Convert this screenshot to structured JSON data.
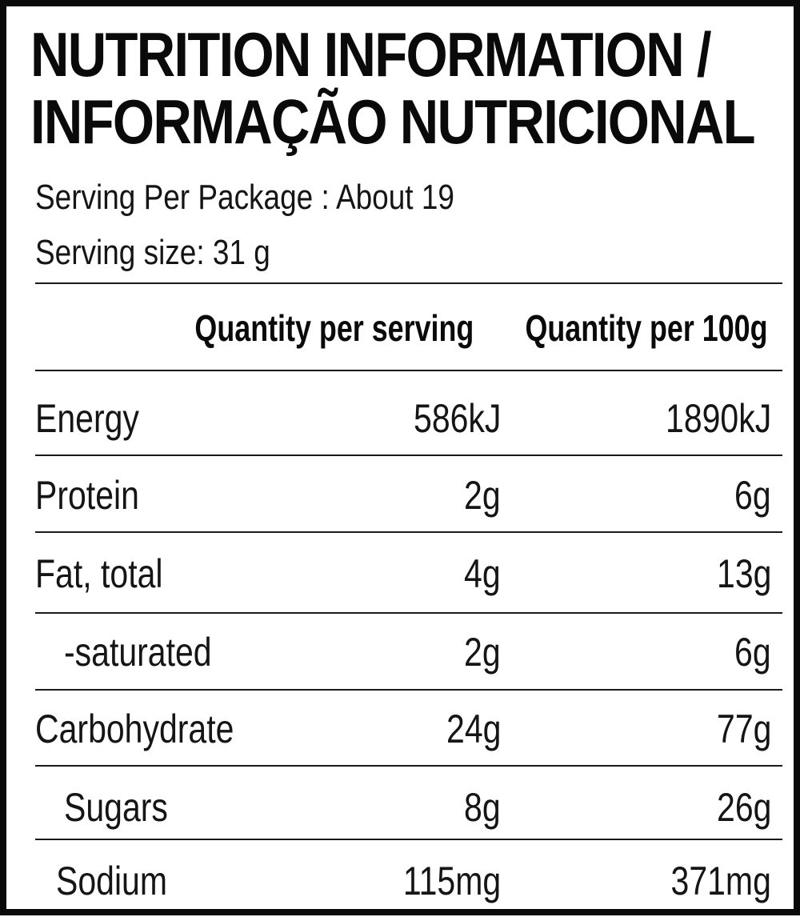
{
  "title": {
    "line1": "NUTRITION INFORMATION /",
    "line2": "INFORMAÇÃO NUTRICIONAL"
  },
  "servings_per_package": "Serving Per Package : About 19",
  "serving_size": "Serving size: 31 g",
  "columns": {
    "per_serving": "Quantity per serving",
    "per_100g": "Quantity per 100g"
  },
  "rows": [
    {
      "label": "Energy",
      "per_serving": "586kJ",
      "per_100g": "1890kJ"
    },
    {
      "label": "Protein",
      "per_serving": "2g",
      "per_100g": "6g"
    },
    {
      "label": "Fat, total",
      "per_serving": "4g",
      "per_100g": "13g"
    },
    {
      "label": "-saturated",
      "per_serving": "2g",
      "per_100g": "6g"
    },
    {
      "label": "Carbohydrate",
      "per_serving": "24g",
      "per_100g": "77g"
    },
    {
      "label": "Sugars",
      "per_serving": "8g",
      "per_100g": "26g"
    },
    {
      "label": "Sodium",
      "per_serving": "115mg",
      "per_100g": "371mg"
    }
  ]
}
